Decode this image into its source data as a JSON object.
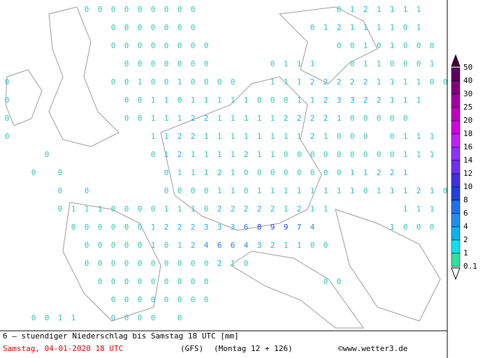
{
  "map": {
    "grid": [
      [
        null,
        null,
        null,
        null,
        null,
        null,
        0,
        0,
        0,
        0,
        0,
        0,
        0,
        0,
        0,
        null,
        null,
        null,
        null,
        null,
        null,
        null,
        null,
        null,
        null,
        0,
        1,
        2,
        1,
        1,
        1,
        1
      ],
      [
        null,
        null,
        null,
        null,
        null,
        null,
        null,
        null,
        0,
        0,
        0,
        0,
        0,
        0,
        0,
        null,
        null,
        null,
        null,
        null,
        null,
        null,
        null,
        0,
        1,
        2,
        1,
        1,
        1,
        1,
        0,
        1
      ],
      [
        null,
        null,
        null,
        null,
        null,
        null,
        null,
        null,
        0,
        0,
        0,
        0,
        0,
        0,
        0,
        0,
        null,
        null,
        null,
        null,
        null,
        null,
        null,
        null,
        null,
        0,
        0,
        1,
        0,
        1,
        0,
        0,
        0
      ],
      [
        null,
        null,
        null,
        null,
        null,
        null,
        null,
        null,
        null,
        0,
        0,
        0,
        0,
        0,
        0,
        0,
        null,
        null,
        null,
        null,
        0,
        1,
        1,
        1,
        null,
        null,
        0,
        1,
        1,
        0,
        0,
        0,
        1
      ],
      [
        0,
        null,
        null,
        null,
        null,
        null,
        null,
        null,
        0,
        0,
        1,
        0,
        0,
        1,
        0,
        0,
        0,
        0,
        null,
        null,
        1,
        1,
        1,
        2,
        2,
        2,
        2,
        2,
        1,
        1,
        1,
        1,
        0,
        0
      ],
      [
        0,
        null,
        null,
        null,
        null,
        null,
        null,
        null,
        null,
        0,
        0,
        1,
        1,
        0,
        1,
        1,
        1,
        1,
        1,
        0,
        0,
        0,
        1,
        1,
        2,
        3,
        3,
        2,
        2,
        1,
        1,
        1
      ],
      [
        0,
        null,
        null,
        null,
        null,
        null,
        null,
        null,
        null,
        0,
        0,
        1,
        1,
        1,
        2,
        2,
        1,
        1,
        1,
        1,
        1,
        2,
        2,
        2,
        2,
        1,
        0,
        0,
        0,
        0,
        0
      ],
      [
        0,
        null,
        null,
        null,
        null,
        null,
        null,
        null,
        null,
        null,
        null,
        1,
        1,
        2,
        2,
        1,
        1,
        1,
        1,
        1,
        1,
        1,
        1,
        2,
        1,
        0,
        0,
        0,
        null,
        0,
        1,
        1,
        1
      ],
      [
        null,
        null,
        null,
        0,
        null,
        null,
        null,
        null,
        null,
        null,
        null,
        0,
        1,
        2,
        1,
        1,
        1,
        1,
        2,
        1,
        1,
        0,
        0,
        0,
        0,
        0,
        0,
        0,
        0,
        0,
        1,
        1,
        1
      ],
      [
        null,
        null,
        0,
        null,
        0,
        null,
        null,
        null,
        null,
        null,
        null,
        null,
        0,
        1,
        1,
        1,
        2,
        1,
        0,
        0,
        0,
        0,
        0,
        0,
        0,
        0,
        1,
        1,
        2,
        2,
        1
      ],
      [
        null,
        null,
        null,
        null,
        0,
        null,
        0,
        null,
        null,
        null,
        null,
        null,
        0,
        0,
        0,
        0,
        1,
        1,
        0,
        1,
        1,
        1,
        1,
        1,
        1,
        1,
        1,
        0,
        1,
        1,
        1,
        2,
        1,
        0
      ],
      [
        null,
        null,
        null,
        null,
        0,
        1,
        1,
        1,
        0,
        0,
        0,
        0,
        1,
        1,
        1,
        0,
        2,
        2,
        2,
        2,
        2,
        1,
        2,
        1,
        1,
        null,
        null,
        null,
        null,
        null,
        1,
        1,
        1
      ],
      [
        null,
        null,
        null,
        null,
        null,
        0,
        0,
        0,
        0,
        0,
        0,
        1,
        2,
        2,
        2,
        3,
        3,
        3,
        6,
        8,
        9,
        9,
        7,
        4,
        null,
        null,
        null,
        null,
        null,
        1,
        0,
        0,
        0
      ],
      [
        null,
        null,
        null,
        null,
        null,
        null,
        0,
        0,
        0,
        0,
        0,
        1,
        0,
        1,
        2,
        4,
        6,
        6,
        4,
        3,
        2,
        1,
        1,
        0,
        0
      ],
      [
        null,
        null,
        null,
        null,
        null,
        null,
        0,
        0,
        0,
        0,
        0,
        0,
        0,
        0,
        0,
        0,
        2,
        1,
        0
      ],
      [
        null,
        null,
        null,
        null,
        null,
        null,
        null,
        0,
        0,
        0,
        0,
        0,
        0,
        0,
        0,
        0,
        null,
        null,
        null,
        null,
        null,
        null,
        null,
        null,
        0,
        0
      ],
      [
        null,
        null,
        null,
        null,
        null,
        null,
        null,
        null,
        0,
        0,
        0,
        0,
        0,
        0,
        0,
        0
      ],
      [
        null,
        null,
        0,
        0,
        1,
        1,
        null,
        null,
        0,
        0,
        0,
        0,
        null,
        0
      ]
    ]
  },
  "legend": {
    "labels": [
      50,
      40,
      30,
      25,
      20,
      18,
      16,
      14,
      12,
      10,
      8,
      6,
      4,
      2,
      1,
      0.1
    ],
    "colors": [
      "#5a0060",
      "#800080",
      "#a000a0",
      "#c000c0",
      "#d000e0",
      "#c020ff",
      "#9030ff",
      "#7030f0",
      "#4030e0",
      "#2040e0",
      "#2070f0",
      "#2090f0",
      "#10b0f0",
      "#10e0f0",
      "#30e0a0"
    ]
  },
  "footer": {
    "description": "6 – stuendiger Niederschlag bis Samstag 18 UTC [mm]",
    "valid_time": "Samstag, 04-01-2020  18 UTC",
    "model": "(GFS)",
    "run": "(Montag 12 + 126)",
    "source": "©www.wetter3.de"
  }
}
